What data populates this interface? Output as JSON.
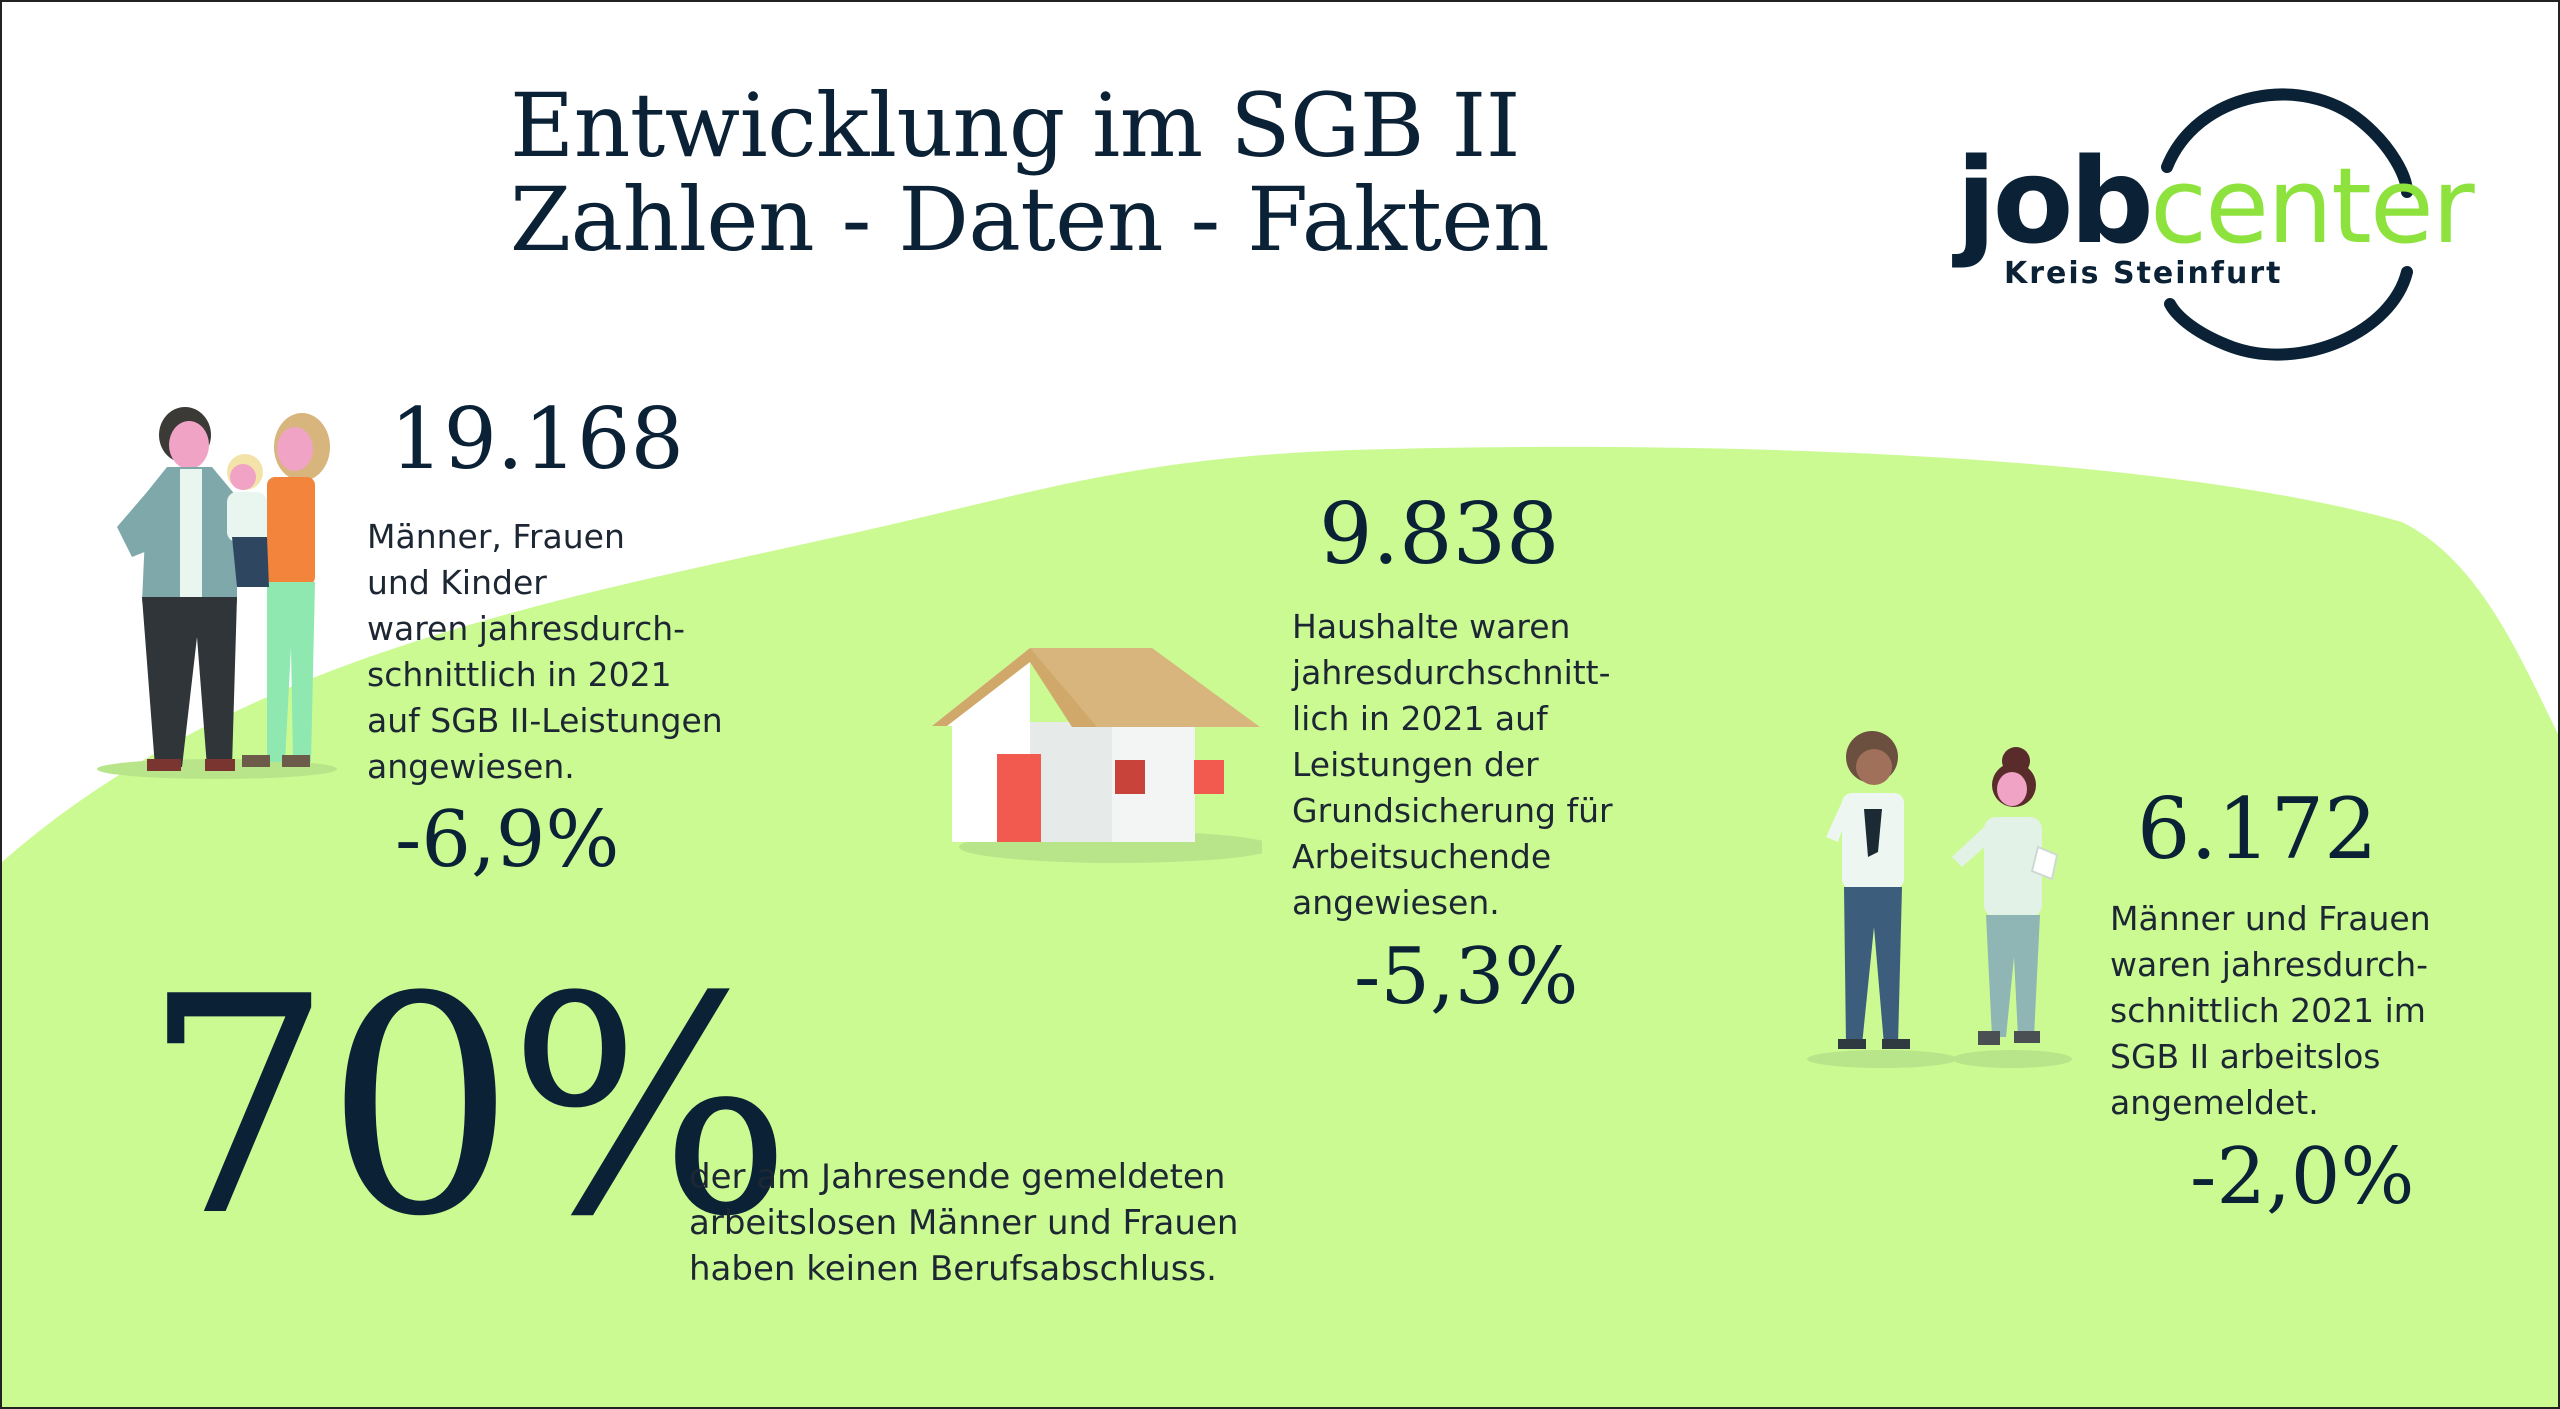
{
  "title": {
    "line1": "Entwicklung im SGB II",
    "line2": "Zahlen - Daten - Fakten"
  },
  "logo": {
    "word_dark": "job",
    "word_green": "center",
    "subtitle": "Kreis Steinfurt"
  },
  "stats": {
    "people": {
      "value": "19.168",
      "description": [
        "Männer, Frauen",
        "und Kinder",
        "waren jahresdurch-",
        "schnittlich in 2021",
        "auf SGB II-Leistungen",
        "angewiesen."
      ],
      "change": "-6,9%"
    },
    "households": {
      "value": "9.838",
      "description": [
        "Haushalte waren",
        "jahresdurchschnitt-",
        "lich in 2021 auf",
        "Leistungen der",
        "Grundsicherung für",
        "Arbeitsuchende",
        "angewiesen."
      ],
      "change": "-5,3%"
    },
    "unemployed": {
      "value": "6.172",
      "description": [
        "Männer und Frauen",
        "waren jahresdurch-",
        "schnittlich 2021 im",
        "SGB II arbeitslos",
        "angemeldet."
      ],
      "change": "-2,0%"
    },
    "no_degree": {
      "value": "70%",
      "description": [
        "der am Jahresende gemeldeten",
        "arbeitslosen Männer und Frauen",
        "haben keinen Berufsabschluss."
      ]
    }
  },
  "colors": {
    "navy": "#0b2236",
    "hill_green": "#cbfa93",
    "logo_green": "#8ee23e",
    "house_roof": "#d7b57c",
    "house_door": "#f25a4f"
  },
  "illustrations": [
    "family-illustration",
    "house-illustration",
    "workers-illustration"
  ]
}
